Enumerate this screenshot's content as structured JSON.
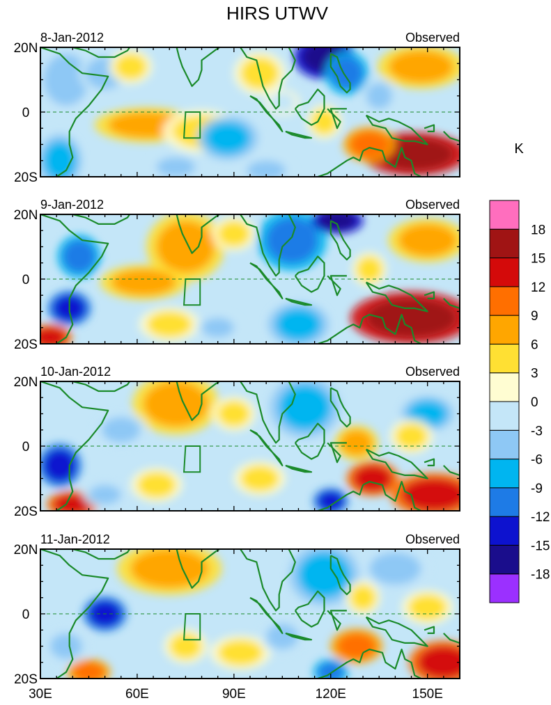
{
  "chart_data": {
    "type": "heatmap",
    "title": "HIRS UTWV",
    "units": "K",
    "region": {
      "lon_range": [
        30,
        160
      ],
      "lat_range": [
        -20,
        20
      ],
      "x_ticks": [
        "30E",
        "60E",
        "90E",
        "120E",
        "150E"
      ],
      "y_ticks": [
        "20N",
        "0",
        "20S"
      ]
    },
    "colorbar": {
      "colors": [
        "#9b30ff",
        "#1a0d8c",
        "#0d12cf",
        "#1e7be6",
        "#00b5f0",
        "#8ec8f5",
        "#c4e6f8",
        "#fffdd2",
        "#ffe033",
        "#ffa600",
        "#ff6f00",
        "#d40a0a",
        "#a01414",
        "#ff6ebe"
      ],
      "labels": [
        "-18",
        "-15",
        "-12",
        "-9",
        "-6",
        "-3",
        "0",
        "3",
        "6",
        "9",
        "12",
        "15",
        "18"
      ]
    },
    "panels": [
      {
        "date": "8-Jan-2012",
        "label": "Observed",
        "blobs": [
          {
            "lon": 63,
            "lat": -4,
            "rlon": 12,
            "rlat": 4,
            "v": 8
          },
          {
            "lon": 80,
            "lat": -6,
            "rlon": 9,
            "rlat": 5,
            "v": 5
          },
          {
            "lon": 38,
            "lat": 10,
            "rlon": 7,
            "rlat": 8,
            "v": -5
          },
          {
            "lon": 36,
            "lat": -15,
            "rlon": 5,
            "rlat": 6,
            "v": -9
          },
          {
            "lon": 50,
            "lat": 12,
            "rlon": 6,
            "rlat": 5,
            "v": -4
          },
          {
            "lon": 72,
            "lat": -17,
            "rlon": 6,
            "rlat": 3,
            "v": -6
          },
          {
            "lon": 88,
            "lat": -8,
            "rlon": 7,
            "rlat": 5,
            "v": -7
          },
          {
            "lon": 100,
            "lat": -18,
            "rlon": 6,
            "rlat": 3,
            "v": -4
          },
          {
            "lon": 118,
            "lat": 17,
            "rlon": 7,
            "rlat": 5,
            "v": -16
          },
          {
            "lon": 125,
            "lat": 12,
            "rlon": 5,
            "rlat": 5,
            "v": -10
          },
          {
            "lon": 98,
            "lat": 12,
            "rlon": 6,
            "rlat": 5,
            "v": 5
          },
          {
            "lon": 105,
            "lat": 3,
            "rlon": 4,
            "rlat": 3,
            "v": -3
          },
          {
            "lon": 146,
            "lat": -13,
            "rlon": 12,
            "rlat": 5,
            "v": 16
          },
          {
            "lon": 132,
            "lat": -10,
            "rlon": 6,
            "rlat": 4,
            "v": 9
          },
          {
            "lon": 148,
            "lat": 14,
            "rlon": 10,
            "rlat": 5,
            "v": 6
          },
          {
            "lon": 118,
            "lat": -3,
            "rlon": 4,
            "rlat": 4,
            "v": 5
          },
          {
            "lon": 135,
            "lat": 5,
            "rlon": 4,
            "rlat": 4,
            "v": -6
          },
          {
            "lon": 58,
            "lat": 14,
            "rlon": 5,
            "rlat": 4,
            "v": 3
          }
        ]
      },
      {
        "date": "9-Jan-2012",
        "label": "Observed",
        "blobs": [
          {
            "lon": 75,
            "lat": 10,
            "rlon": 9,
            "rlat": 8,
            "v": 7
          },
          {
            "lon": 62,
            "lat": -1,
            "rlon": 10,
            "rlat": 4,
            "v": 6
          },
          {
            "lon": 42,
            "lat": 7,
            "rlon": 5,
            "rlat": 5,
            "v": -10
          },
          {
            "lon": 39,
            "lat": -9,
            "rlon": 5,
            "rlat": 4,
            "v": -14
          },
          {
            "lon": 33,
            "lat": -18,
            "rlon": 5,
            "rlat": 3,
            "v": 12
          },
          {
            "lon": 108,
            "lat": 12,
            "rlon": 8,
            "rlat": 7,
            "v": -11
          },
          {
            "lon": 122,
            "lat": 18,
            "rlon": 6,
            "rlat": 3,
            "v": -16
          },
          {
            "lon": 145,
            "lat": -12,
            "rlon": 14,
            "rlat": 6,
            "v": 17
          },
          {
            "lon": 150,
            "lat": 12,
            "rlon": 9,
            "rlat": 5,
            "v": 8
          },
          {
            "lon": 110,
            "lat": -14,
            "rlon": 7,
            "rlat": 5,
            "v": -8
          },
          {
            "lon": 70,
            "lat": -14,
            "rlon": 7,
            "rlat": 4,
            "v": 5
          },
          {
            "lon": 85,
            "lat": -15,
            "rlon": 5,
            "rlat": 3,
            "v": -4
          },
          {
            "lon": 90,
            "lat": 14,
            "rlon": 5,
            "rlat": 4,
            "v": 3
          },
          {
            "lon": 132,
            "lat": 3,
            "rlon": 4,
            "rlat": 4,
            "v": 5
          }
        ]
      },
      {
        "date": "10-Jan-2012",
        "label": "Observed",
        "blobs": [
          {
            "lon": 72,
            "lat": 13,
            "rlon": 10,
            "rlat": 7,
            "v": 6
          },
          {
            "lon": 36,
            "lat": -6,
            "rlon": 5,
            "rlat": 5,
            "v": -15
          },
          {
            "lon": 40,
            "lat": -18,
            "rlon": 6,
            "rlat": 3,
            "v": 14
          },
          {
            "lon": 133,
            "lat": -10,
            "rlon": 6,
            "rlat": 4,
            "v": 14
          },
          {
            "lon": 152,
            "lat": -15,
            "rlon": 10,
            "rlat": 5,
            "v": 13
          },
          {
            "lon": 112,
            "lat": 12,
            "rlon": 8,
            "rlat": 7,
            "v": -8
          },
          {
            "lon": 120,
            "lat": -17,
            "rlon": 4,
            "rlat": 3,
            "v": -13
          },
          {
            "lon": 98,
            "lat": -10,
            "rlon": 6,
            "rlat": 4,
            "v": 4
          },
          {
            "lon": 128,
            "lat": 1,
            "rlon": 5,
            "rlat": 4,
            "v": 6
          },
          {
            "lon": 150,
            "lat": 10,
            "rlon": 6,
            "rlat": 4,
            "v": -9
          },
          {
            "lon": 55,
            "lat": 5,
            "rlon": 6,
            "rlat": 4,
            "v": -5
          },
          {
            "lon": 66,
            "lat": -12,
            "rlon": 6,
            "rlat": 4,
            "v": 4
          },
          {
            "lon": 50,
            "lat": -15,
            "rlon": 5,
            "rlat": 3,
            "v": -6
          },
          {
            "lon": 90,
            "lat": 10,
            "rlon": 5,
            "rlat": 4,
            "v": 3
          },
          {
            "lon": 145,
            "lat": 3,
            "rlon": 5,
            "rlat": 4,
            "v": 4
          }
        ]
      },
      {
        "date": "11-Jan-2012",
        "label": "Observed",
        "blobs": [
          {
            "lon": 70,
            "lat": 14,
            "rlon": 12,
            "rlat": 6,
            "v": 6
          },
          {
            "lon": 50,
            "lat": 0,
            "rlon": 5,
            "rlat": 4,
            "v": -13
          },
          {
            "lon": 45,
            "lat": -18,
            "rlon": 5,
            "rlat": 3,
            "v": 11
          },
          {
            "lon": 128,
            "lat": -10,
            "rlon": 6,
            "rlat": 4,
            "v": 10
          },
          {
            "lon": 155,
            "lat": -15,
            "rlon": 8,
            "rlat": 5,
            "v": 14
          },
          {
            "lon": 118,
            "lat": 12,
            "rlon": 8,
            "rlat": 7,
            "v": -7
          },
          {
            "lon": 120,
            "lat": -18,
            "rlon": 4,
            "rlat": 3,
            "v": -12
          },
          {
            "lon": 92,
            "lat": -12,
            "rlon": 7,
            "rlat": 4,
            "v": 5
          },
          {
            "lon": 105,
            "lat": -7,
            "rlon": 5,
            "rlat": 4,
            "v": -5
          },
          {
            "lon": 140,
            "lat": 14,
            "rlon": 8,
            "rlat": 5,
            "v": -5
          },
          {
            "lon": 150,
            "lat": 2,
            "rlon": 6,
            "rlat": 4,
            "v": 3
          },
          {
            "lon": 38,
            "lat": -10,
            "rlon": 5,
            "rlat": 4,
            "v": -6
          },
          {
            "lon": 75,
            "lat": -10,
            "rlon": 5,
            "rlat": 4,
            "v": 4
          },
          {
            "lon": 130,
            "lat": 5,
            "rlon": 4,
            "rlat": 4,
            "v": 5
          }
        ]
      }
    ]
  }
}
